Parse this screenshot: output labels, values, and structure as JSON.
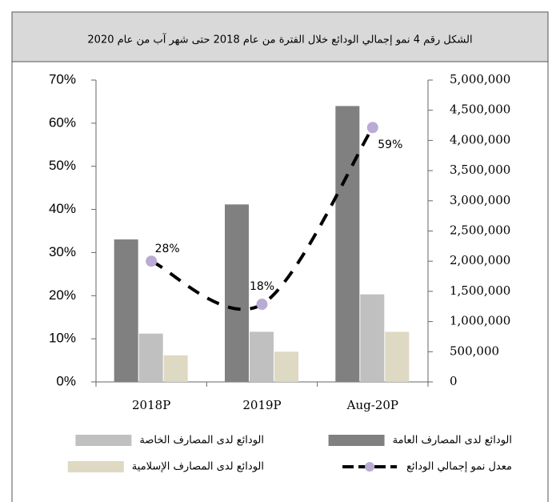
{
  "chart_data": {
    "type": "bar",
    "title": "الشكل رقم 4 نمو إجمالي الودائع خلال الفترة من عام 2018 حتى شهر آب من عام 2020",
    "categories": [
      "2018P",
      "2019P",
      "Aug-20P"
    ],
    "series": [
      {
        "name": "الودائع لدى المصارف العامة",
        "color": "#808080",
        "axis": "y2",
        "values": [
          2360000,
          2940000,
          4570000
        ]
      },
      {
        "name": "الودائع لدى المصارف الخاصة",
        "color": "#c0c0c0",
        "axis": "y2",
        "values": [
          800000,
          830000,
          1450000
        ]
      },
      {
        "name": "الودائع لدى المصارف الإسلامية",
        "color": "#ddd9c3",
        "axis": "y2",
        "values": [
          440000,
          500000,
          830000
        ]
      },
      {
        "name": "معدل نمو إجمالي الودائع",
        "type": "line",
        "color": "#000000",
        "marker_color": "#b9abd3",
        "values": [
          28,
          18,
          59
        ],
        "value_labels": [
          "28%",
          "18%",
          "59%"
        ]
      }
    ],
    "ylim": [
      0,
      70
    ],
    "yticks": [
      {
        "value": 0,
        "label": "0%"
      },
      {
        "value": 10,
        "label": "10%"
      },
      {
        "value": 20,
        "label": "20%"
      },
      {
        "value": 30,
        "label": "30%"
      },
      {
        "value": 40,
        "label": "40%"
      },
      {
        "value": 50,
        "label": "50%"
      },
      {
        "value": 60,
        "label": "60%"
      },
      {
        "value": 70,
        "label": "70%"
      }
    ],
    "y2lim": [
      0,
      5000000
    ],
    "y2ticks": [
      0,
      {
        "value": 500000,
        "label": "500,000"
      },
      {
        "value": 1000000,
        "label": "1,000,000"
      },
      {
        "value": 1500000,
        "label": "1,500,000"
      },
      {
        "value": 2000000,
        "label": "2,000,000"
      },
      {
        "value": 2500000,
        "label": "2,500,000"
      },
      {
        "value": 3000000,
        "label": "3,000,000"
      },
      {
        "value": 3500000,
        "label": "3,500,000"
      },
      {
        "value": 4000000,
        "label": "4,000,000"
      },
      {
        "value": 4500000,
        "label": "4,500,000"
      },
      {
        "value": 5000000,
        "label": "5,000,000"
      }
    ]
  }
}
